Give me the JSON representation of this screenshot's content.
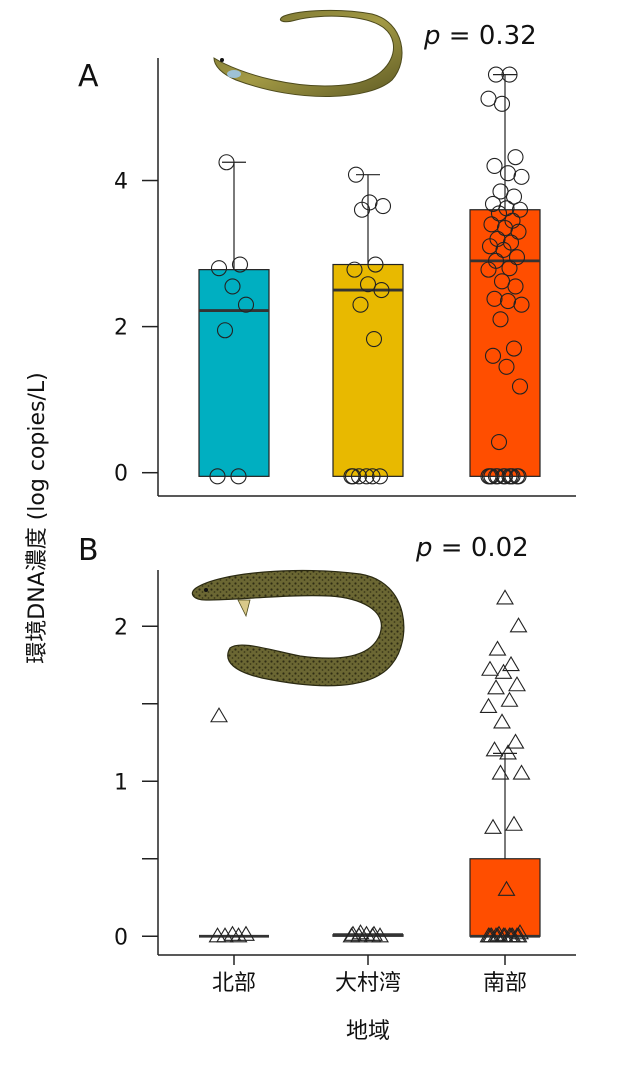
{
  "figure": {
    "ylabel": "環境DNA濃度 (log copies/L)",
    "xlabel": "地域",
    "colors": {
      "north": "#00AFC1",
      "omura": "#E8B900",
      "south": "#FF4E00",
      "axis": "#222222",
      "median": "#333333"
    }
  },
  "chart_data": [
    {
      "type": "box",
      "panel": "A",
      "pvalue_label": "p",
      "pvalue_text": " = 0.32",
      "categories": [
        "北部",
        "大村湾",
        "南部"
      ],
      "ylim": [
        -0.1,
        5.65
      ],
      "yticks": [
        0,
        2,
        4
      ],
      "ytick_labels": [
        "0",
        "2",
        "4"
      ],
      "marker": "circle",
      "illustration": "eel-icon",
      "boxes": [
        {
          "name": "北部",
          "q1": -0.05,
          "median": 2.22,
          "q3": 2.78,
          "whisker_low": -0.05,
          "whisker_high": 4.25
        },
        {
          "name": "大村湾",
          "q1": -0.05,
          "median": 2.5,
          "q3": 2.85,
          "whisker_low": -0.05,
          "whisker_high": 4.08
        },
        {
          "name": "南部",
          "q1": -0.05,
          "median": 2.9,
          "q3": 3.6,
          "whisker_low": -0.05,
          "whisker_high": 5.45
        }
      ],
      "points": [
        [
          -0.05,
          -0.05,
          1.95,
          2.3,
          2.55,
          2.8,
          2.85,
          4.25
        ],
        [
          -0.05,
          -0.05,
          -0.05,
          -0.05,
          -0.05,
          -0.05,
          1.83,
          2.3,
          2.5,
          2.58,
          2.78,
          2.85,
          3.6,
          3.65,
          3.7,
          4.08
        ],
        [
          -0.05,
          -0.05,
          -0.05,
          -0.05,
          -0.05,
          -0.05,
          -0.05,
          -0.05,
          -0.05,
          -0.05,
          -0.05,
          -0.05,
          0.42,
          1.18,
          1.45,
          1.6,
          1.7,
          2.1,
          2.3,
          2.35,
          2.38,
          2.55,
          2.62,
          2.78,
          2.8,
          2.9,
          2.95,
          3.05,
          3.1,
          3.15,
          3.2,
          3.3,
          3.35,
          3.4,
          3.45,
          3.55,
          3.6,
          3.62,
          3.68,
          3.78,
          3.85,
          4.05,
          4.1,
          4.2,
          4.32,
          5.05,
          5.12,
          5.45,
          5.45
        ]
      ]
    },
    {
      "type": "box",
      "panel": "B",
      "pvalue_label": "p",
      "pvalue_text": " = 0.02",
      "categories": [
        "北部",
        "大村湾",
        "南部"
      ],
      "ylim": [
        -0.05,
        2.35
      ],
      "yticks": [
        0,
        0.5,
        1,
        1.5,
        2
      ],
      "ytick_labels": [
        "0",
        "",
        "1",
        "",
        "2"
      ],
      "marker": "triangle",
      "illustration": "eel-icon",
      "boxes": [
        {
          "name": "北部",
          "q1": 0,
          "median": 0,
          "q3": 0,
          "whisker_low": 0,
          "whisker_high": 0
        },
        {
          "name": "大村湾",
          "q1": 0,
          "median": 0.01,
          "q3": 0.01,
          "whisker_low": 0,
          "whisker_high": 0.01
        },
        {
          "name": "南部",
          "q1": 0,
          "median": 0,
          "q3": 0.5,
          "whisker_low": 0,
          "whisker_high": 1.18
        }
      ],
      "points": [
        [
          0,
          0,
          0,
          0.01,
          0.01,
          1.42
        ],
        [
          0,
          0,
          0,
          0,
          0.01,
          0.01,
          0.01,
          0.02
        ],
        [
          0,
          0,
          0,
          0,
          0,
          0,
          0,
          0,
          0,
          0,
          0,
          0,
          0.01,
          0.02,
          0.3,
          0.7,
          0.72,
          1.05,
          1.05,
          1.18,
          1.2,
          1.25,
          1.38,
          1.48,
          1.52,
          1.6,
          1.62,
          1.7,
          1.72,
          1.75,
          1.85,
          2.0,
          2.18
        ]
      ]
    }
  ]
}
